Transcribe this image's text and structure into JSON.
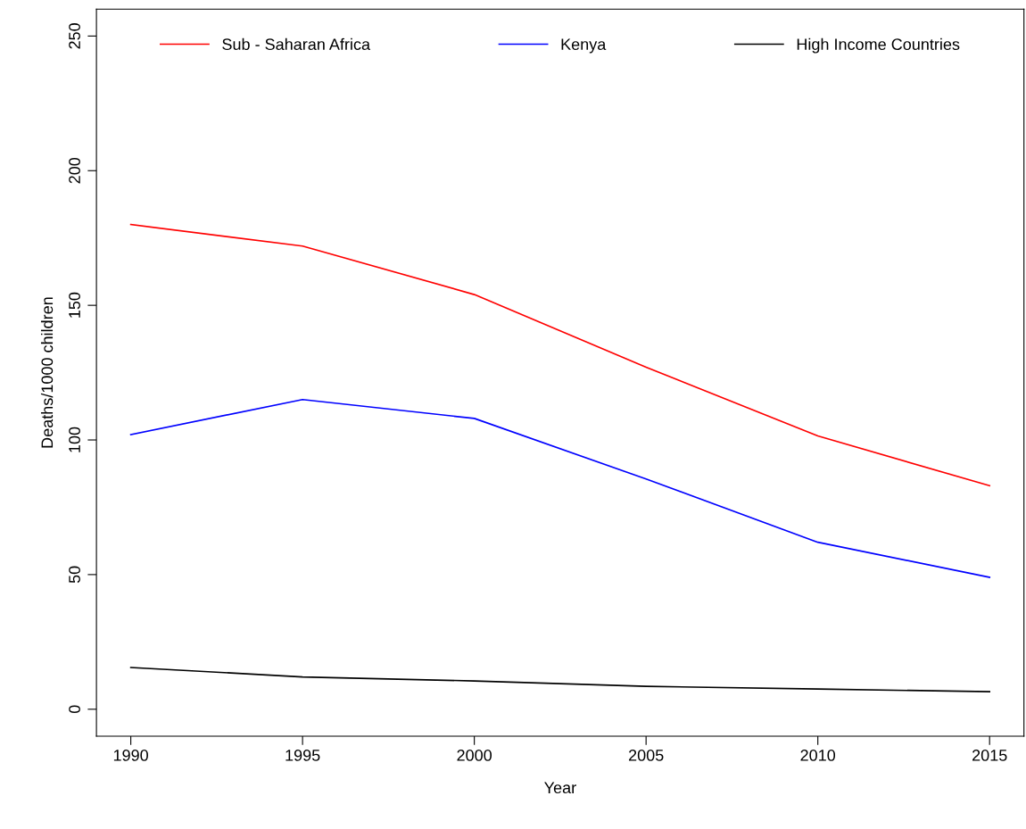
{
  "chart_data": {
    "type": "line",
    "xlabel": "Year",
    "ylabel": "Deaths/1000 children",
    "x": [
      1990,
      1995,
      2000,
      2005,
      2010,
      2015
    ],
    "series": [
      {
        "name": "Sub - Saharan Africa",
        "color": "#ff0000",
        "values": [
          180,
          172,
          154,
          127,
          101.5,
          83
        ]
      },
      {
        "name": "Kenya",
        "color": "#0000ff",
        "values": [
          102,
          115,
          108,
          85.5,
          62,
          49
        ]
      },
      {
        "name": "High Income Countries",
        "color": "#000000",
        "values": [
          15.5,
          12,
          10.5,
          8.5,
          7.5,
          6.5
        ]
      }
    ],
    "xlim": [
      1989,
      2016
    ],
    "ylim": [
      -10,
      260
    ],
    "xticks": [
      1990,
      1995,
      2000,
      2005,
      2010,
      2015
    ],
    "yticks": [
      0,
      50,
      100,
      150,
      200,
      250
    ],
    "grid": false,
    "legend": "top",
    "marker": "none",
    "line_style": "solid"
  }
}
